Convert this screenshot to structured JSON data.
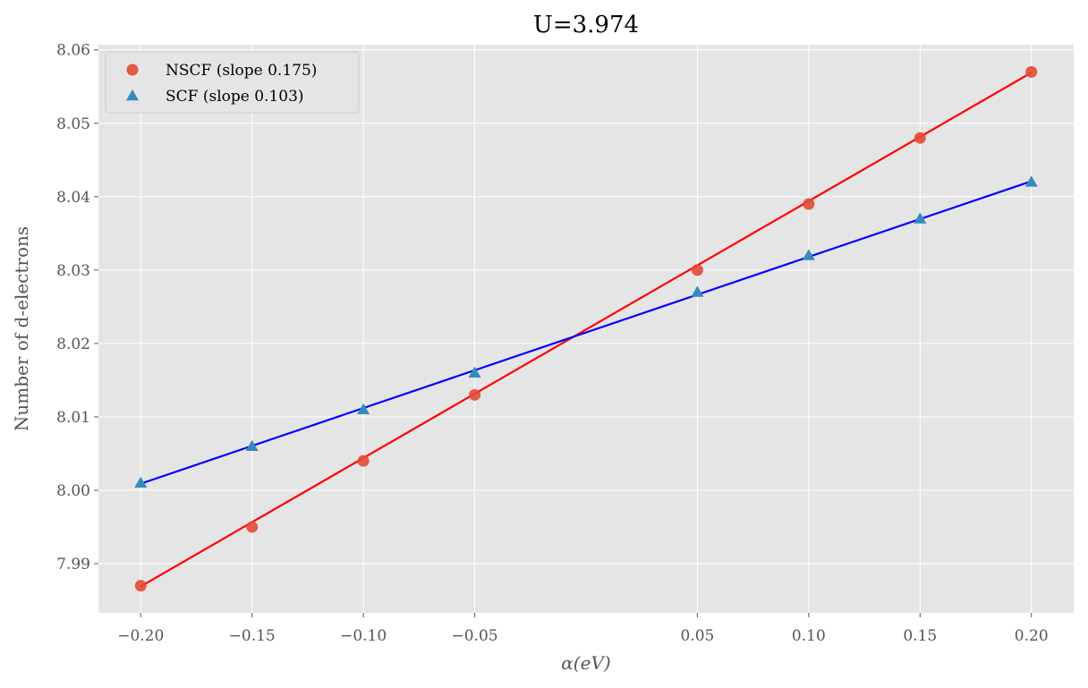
{
  "chart_data": {
    "type": "scatter",
    "title": "U=3.974",
    "xlabel": "α(eV)",
    "ylabel": "Number of d-electrons",
    "xlim": [
      -0.219,
      0.219
    ],
    "ylim": [
      7.9833,
      8.0607
    ],
    "x_ticks": [
      -0.2,
      -0.15,
      -0.1,
      -0.05,
      0.05,
      0.1,
      0.15,
      0.2
    ],
    "x_tick_labels": [
      "−0.20",
      "−0.15",
      "−0.10",
      "−0.05",
      "0.05",
      "0.10",
      "0.15",
      "0.20"
    ],
    "y_ticks": [
      7.99,
      8.0,
      8.01,
      8.02,
      8.03,
      8.04,
      8.05,
      8.06
    ],
    "y_tick_labels": [
      "7.99",
      "8.00",
      "8.01",
      "8.02",
      "8.03",
      "8.04",
      "8.05",
      "8.06"
    ],
    "grid": true,
    "legend_position": "top-left",
    "series": [
      {
        "name": "NSCF (slope 0.175)",
        "marker": "circle",
        "marker_color": "#E24A33",
        "line_color": "#ff0000",
        "x": [
          -0.2,
          -0.15,
          -0.1,
          -0.05,
          0.05,
          0.1,
          0.15,
          0.2
        ],
        "y": [
          7.987,
          7.995,
          8.004,
          8.013,
          8.03,
          8.039,
          8.048,
          8.057
        ],
        "fit": {
          "slope": 0.175,
          "intercept": 8.0219
        }
      },
      {
        "name": "SCF (slope 0.103)",
        "marker": "triangle",
        "marker_color": "#348ABD",
        "line_color": "#0000ff",
        "x": [
          -0.2,
          -0.15,
          -0.1,
          -0.05,
          0.05,
          0.1,
          0.15,
          0.2
        ],
        "y": [
          8.001,
          8.006,
          8.011,
          8.016,
          8.027,
          8.032,
          8.037,
          8.042
        ],
        "fit": {
          "slope": 0.103,
          "intercept": 8.0215
        }
      }
    ]
  }
}
